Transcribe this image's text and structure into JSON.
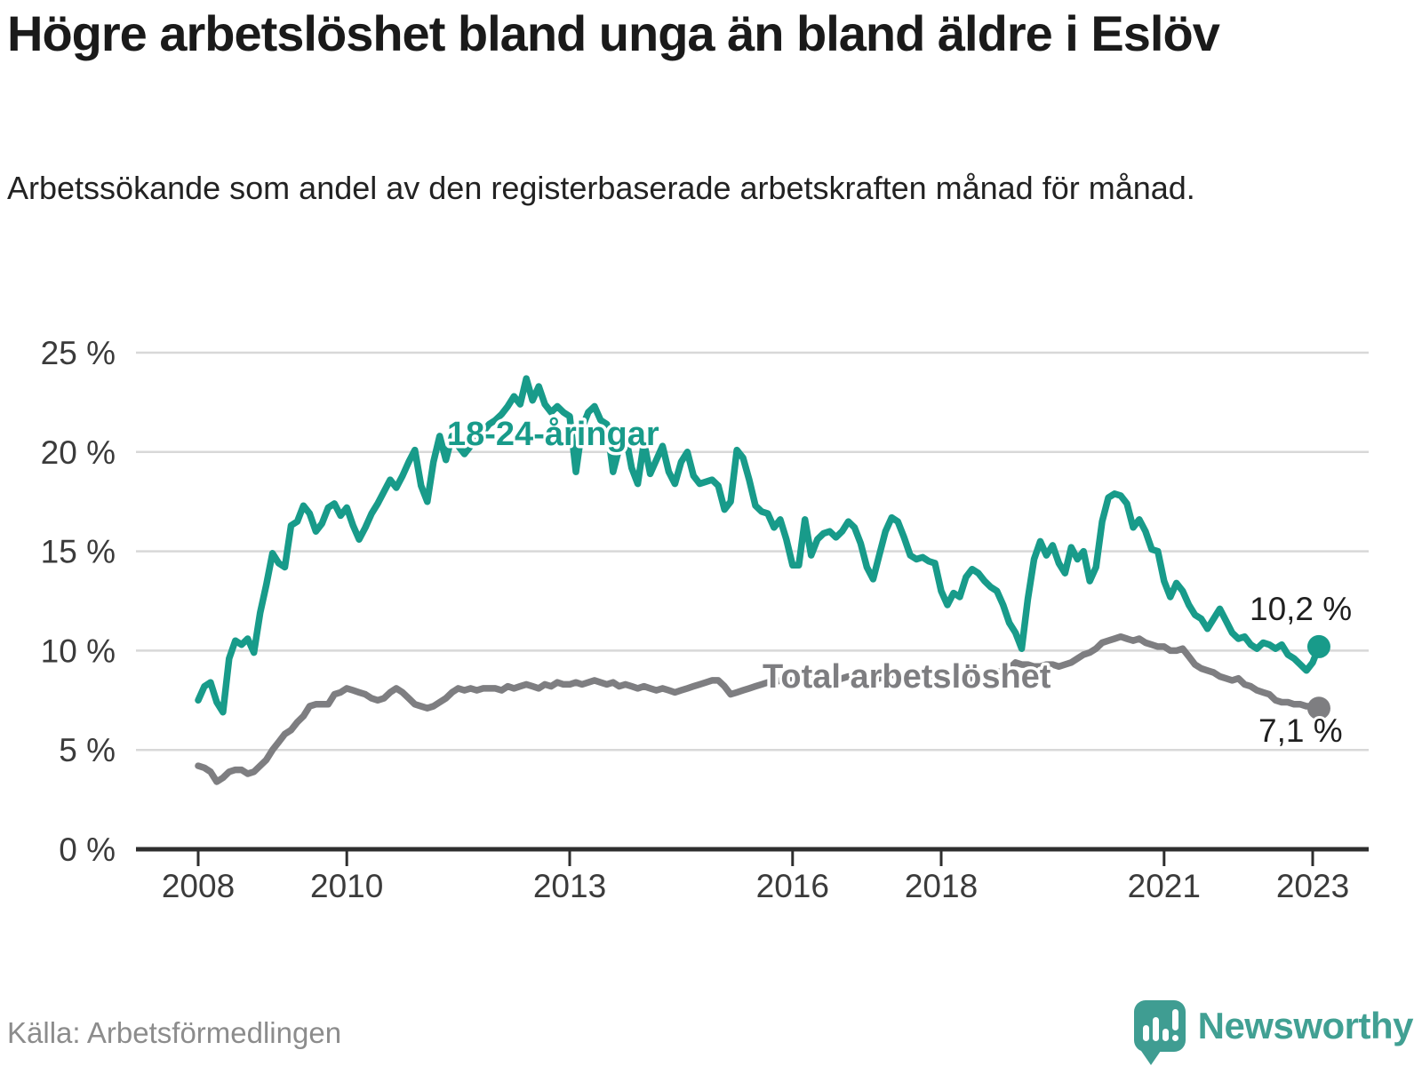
{
  "title": "Högre arbetslöshet bland unga än bland äldre i Eslöv",
  "subtitle": "Arbetssökande som andel av den registerbaserade arbetskraften månad för månad.",
  "source": "Källa: Arbetsförmedlingen",
  "brand": {
    "name": "Newsworthy",
    "icon": "bar-chart-speech-pin-icon",
    "color": "#3f9d92"
  },
  "colors": {
    "youth_line": "#189b8a",
    "total_line": "#7e7e81",
    "grid": "#d8d8d8",
    "axis": "#2e2e2e",
    "axis_text": "#3b3b3b",
    "text": "#1f1f1f",
    "source_text": "#8c8c8c"
  },
  "chart_data": {
    "type": "line",
    "title": "Högre arbetslöshet bland unga än bland äldre i Eslöv",
    "subtitle": "Arbetssökande som andel av den registerbaserade arbetskraften månad för månad.",
    "xlabel": "",
    "ylabel": "",
    "ylim": [
      0,
      25
    ],
    "grid": "horizontal",
    "legend": "inline-labels",
    "frequency": "monthly",
    "x_start": "2008-01",
    "x_end": "2023-02",
    "y_ticks": [
      {
        "label": "25 %",
        "value": 25
      },
      {
        "label": "20 %",
        "value": 20
      },
      {
        "label": "15 %",
        "value": 15
      },
      {
        "label": "10 %",
        "value": 10
      },
      {
        "label": "5 %",
        "value": 5
      },
      {
        "label": "0 %",
        "value": 0
      }
    ],
    "x_ticks": [
      {
        "label": "2008",
        "year": 2008
      },
      {
        "label": "2010",
        "year": 2010
      },
      {
        "label": "2013",
        "year": 2013
      },
      {
        "label": "2016",
        "year": 2016
      },
      {
        "label": "2018",
        "year": 2018
      },
      {
        "label": "2021",
        "year": 2021
      },
      {
        "label": "2023",
        "year": 2023
      }
    ],
    "series": [
      {
        "name": "18-24-åringar",
        "color": "#189b8a",
        "end_label": "10,2 %",
        "end_value": 10.2,
        "values": [
          7.5,
          8.2,
          8.4,
          7.4,
          6.9,
          9.6,
          10.5,
          10.3,
          10.6,
          9.9,
          11.9,
          13.3,
          14.9,
          14.4,
          14.2,
          16.3,
          16.5,
          17.3,
          16.9,
          16.0,
          16.4,
          17.2,
          17.4,
          16.8,
          17.2,
          16.3,
          15.6,
          16.2,
          16.9,
          17.4,
          18.0,
          18.6,
          18.2,
          18.8,
          19.5,
          20.1,
          18.3,
          17.5,
          19.5,
          20.8,
          19.6,
          20.8,
          20.3,
          19.9,
          20.3,
          20.7,
          21.0,
          21.4,
          21.6,
          21.9,
          22.3,
          22.8,
          22.4,
          23.7,
          22.6,
          23.3,
          22.4,
          22.0,
          22.3,
          22.0,
          21.8,
          19.0,
          21.2,
          22.0,
          22.3,
          21.6,
          21.4,
          19.0,
          20.2,
          20.9,
          19.2,
          18.4,
          20.5,
          18.9,
          19.6,
          20.3,
          19.0,
          18.4,
          19.5,
          20.0,
          18.8,
          18.4,
          18.5,
          18.6,
          18.3,
          17.1,
          17.5,
          20.1,
          19.7,
          18.6,
          17.3,
          17.0,
          16.9,
          16.2,
          16.6,
          15.6,
          14.3,
          14.3,
          16.6,
          14.8,
          15.6,
          15.9,
          16.0,
          15.7,
          16.0,
          16.5,
          16.2,
          15.4,
          14.2,
          13.6,
          14.8,
          16.0,
          16.7,
          16.5,
          15.7,
          14.8,
          14.6,
          14.7,
          14.5,
          14.4,
          13.0,
          12.3,
          12.9,
          12.7,
          13.7,
          14.1,
          13.9,
          13.5,
          13.2,
          13.0,
          12.3,
          11.4,
          10.9,
          10.1,
          12.6,
          14.6,
          15.5,
          14.8,
          15.3,
          14.4,
          13.9,
          15.2,
          14.6,
          15.0,
          13.5,
          14.2,
          16.5,
          17.7,
          17.9,
          17.8,
          17.4,
          16.2,
          16.6,
          16.0,
          15.1,
          15.0,
          13.5,
          12.7,
          13.4,
          13.0,
          12.3,
          11.8,
          11.6,
          11.1,
          11.6,
          12.1,
          11.5,
          10.9,
          10.6,
          10.7,
          10.3,
          10.1,
          10.4,
          10.3,
          10.1,
          10.3,
          9.8,
          9.6,
          9.3,
          9.0,
          9.4,
          10.2
        ]
      },
      {
        "name": "Total arbetslöshet",
        "color": "#7e7e81",
        "end_label": "7,1 %",
        "end_value": 7.1,
        "values": [
          4.2,
          4.1,
          3.9,
          3.4,
          3.6,
          3.9,
          4.0,
          4.0,
          3.8,
          3.9,
          4.2,
          4.5,
          5.0,
          5.4,
          5.8,
          6.0,
          6.4,
          6.7,
          7.2,
          7.3,
          7.3,
          7.3,
          7.8,
          7.9,
          8.1,
          8.0,
          7.9,
          7.8,
          7.6,
          7.5,
          7.6,
          7.9,
          8.1,
          7.9,
          7.6,
          7.3,
          7.2,
          7.1,
          7.2,
          7.4,
          7.6,
          7.9,
          8.1,
          8.0,
          8.1,
          8.0,
          8.1,
          8.1,
          8.1,
          8.0,
          8.2,
          8.1,
          8.2,
          8.3,
          8.2,
          8.1,
          8.3,
          8.2,
          8.4,
          8.3,
          8.3,
          8.4,
          8.3,
          8.4,
          8.5,
          8.4,
          8.3,
          8.4,
          8.2,
          8.3,
          8.2,
          8.1,
          8.2,
          8.1,
          8.0,
          8.1,
          8.0,
          7.9,
          8.0,
          8.1,
          8.2,
          8.3,
          8.4,
          8.5,
          8.5,
          8.2,
          7.8,
          7.9,
          8.0,
          8.1,
          8.2,
          8.3,
          8.4,
          8.4,
          8.5,
          8.5,
          8.5,
          8.4,
          8.5,
          8.6,
          8.5,
          8.6,
          8.6,
          8.5,
          8.6,
          8.7,
          8.6,
          8.6,
          8.6,
          8.7,
          8.6,
          8.7,
          8.8,
          8.7,
          8.8,
          8.7,
          8.8,
          8.8,
          8.7,
          8.8,
          8.8,
          8.7,
          8.6,
          8.7,
          8.6,
          8.5,
          8.6,
          8.7,
          8.8,
          8.9,
          9.0,
          9.1,
          9.4,
          9.3,
          9.3,
          9.2,
          9.2,
          9.3,
          9.3,
          9.2,
          9.3,
          9.4,
          9.6,
          9.8,
          9.9,
          10.1,
          10.4,
          10.5,
          10.6,
          10.7,
          10.6,
          10.5,
          10.6,
          10.4,
          10.3,
          10.2,
          10.2,
          10.0,
          10.0,
          10.1,
          9.7,
          9.3,
          9.1,
          9.0,
          8.9,
          8.7,
          8.6,
          8.5,
          8.6,
          8.3,
          8.2,
          8.0,
          7.9,
          7.8,
          7.5,
          7.4,
          7.4,
          7.3,
          7.3,
          7.2,
          7.2,
          7.1
        ]
      }
    ]
  }
}
